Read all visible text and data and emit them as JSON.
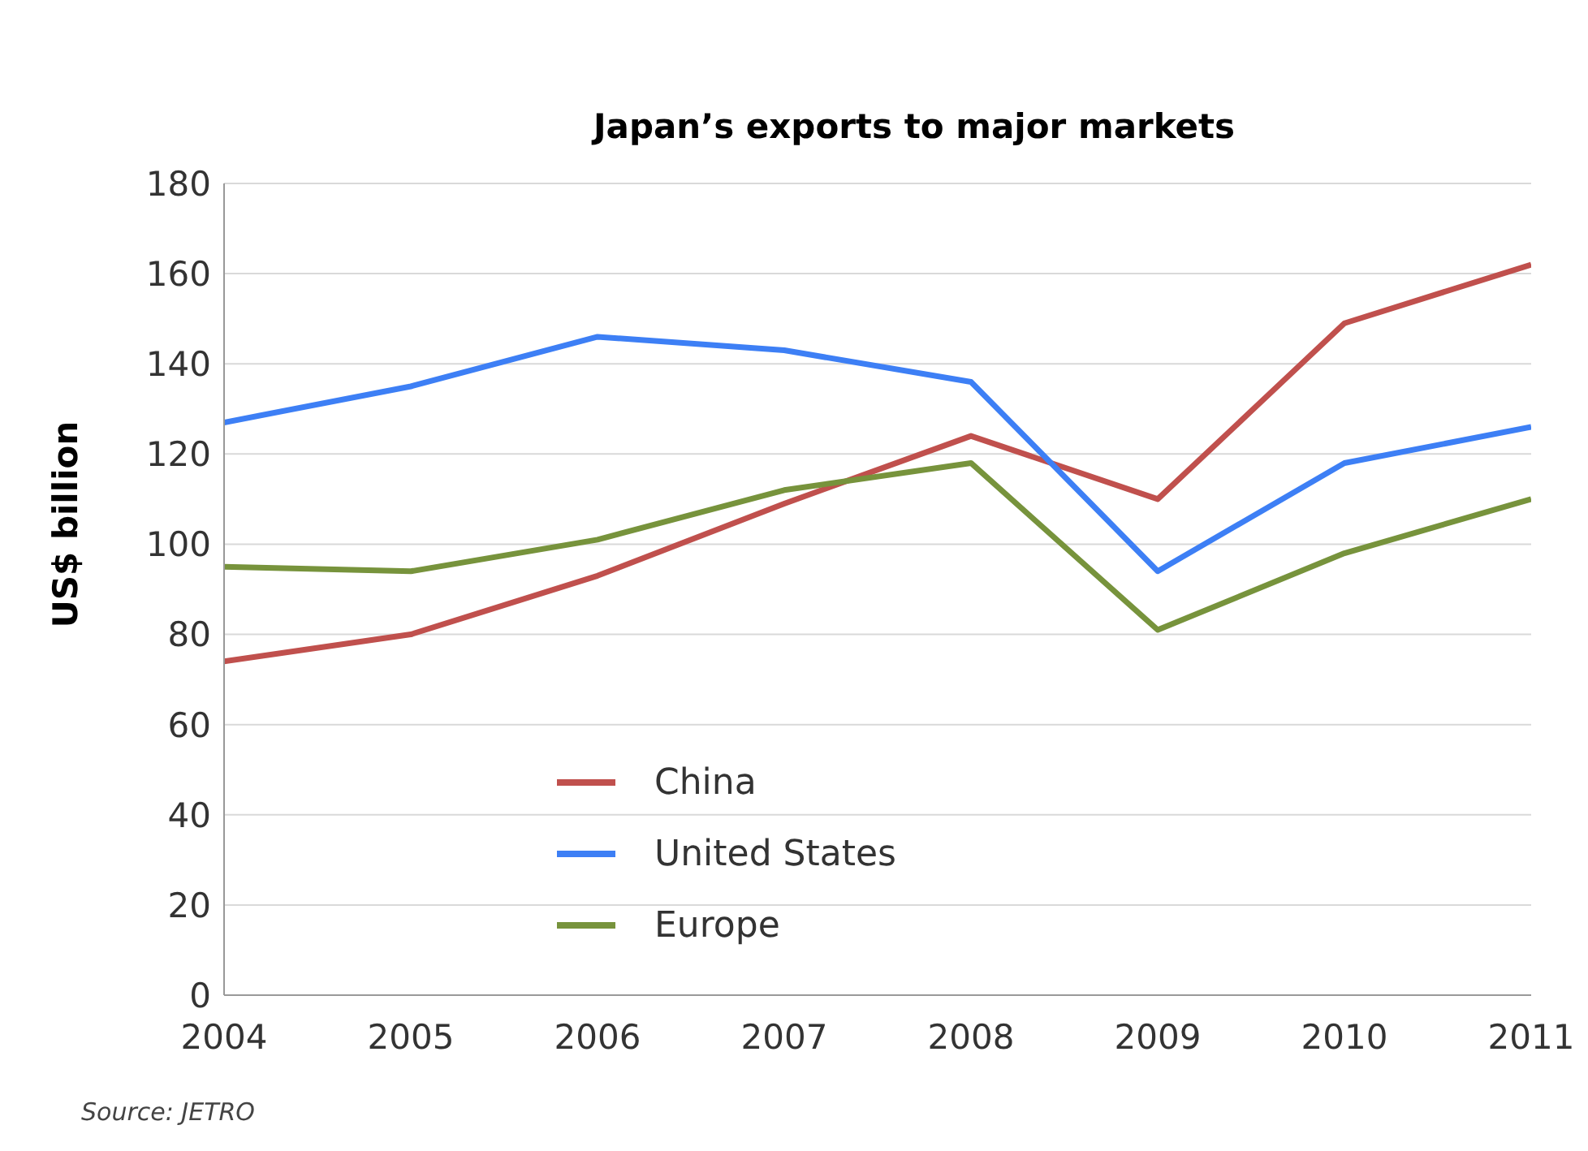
{
  "chart_data": {
    "type": "line",
    "title": "Japan’s exports to major markets",
    "ylabel": "US$ billion",
    "x": [
      2004,
      2005,
      2006,
      2007,
      2008,
      2009,
      2010,
      2011
    ],
    "series": [
      {
        "name": "China",
        "color": "#c0504d",
        "values": [
          74,
          80,
          93,
          109,
          124,
          110,
          149,
          162
        ]
      },
      {
        "name": "United States",
        "color": "#3d7ff5",
        "values": [
          127,
          135,
          146,
          143,
          136,
          94,
          118,
          126
        ]
      },
      {
        "name": "Europe",
        "color": "#77933c",
        "values": [
          95,
          94,
          101,
          112,
          118,
          81,
          98,
          110
        ]
      }
    ],
    "xlim": [
      2004,
      2011
    ],
    "xticks": [
      2004,
      2005,
      2006,
      2007,
      2008,
      2009,
      2010,
      2011
    ],
    "ylim": [
      0,
      180
    ],
    "yticks": [
      0,
      20,
      40,
      60,
      80,
      100,
      120,
      140,
      160,
      180
    ],
    "grid": "y",
    "legend": "bottom left",
    "marker": "none",
    "line_style": "solid",
    "annotations": [
      "Source: JETRO"
    ]
  }
}
